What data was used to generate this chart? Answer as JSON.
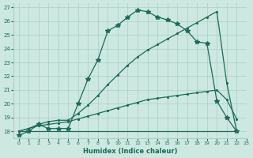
{
  "xlabel": "Humidex (Indice chaleur)",
  "xlim": [
    -0.5,
    23
  ],
  "ylim": [
    17.5,
    27.3
  ],
  "yticks": [
    18,
    19,
    20,
    21,
    22,
    23,
    24,
    25,
    26,
    27
  ],
  "xticks": [
    0,
    1,
    2,
    3,
    4,
    5,
    6,
    7,
    8,
    9,
    10,
    11,
    12,
    13,
    14,
    15,
    16,
    17,
    18,
    19,
    20,
    21,
    22,
    23
  ],
  "bg_color": "#cce8e0",
  "grid_color": "#aacfc7",
  "line_color": "#1a6b5a",
  "curve_main": {
    "x": [
      0,
      1,
      2,
      3,
      4,
      5,
      6,
      7,
      8,
      9,
      10,
      11,
      12,
      13,
      14,
      15,
      16,
      17,
      18,
      19,
      20,
      21,
      22
    ],
    "y": [
      17.7,
      18.0,
      18.5,
      18.2,
      18.2,
      18.2,
      20.0,
      21.8,
      23.2,
      25.3,
      25.7,
      26.3,
      26.8,
      26.7,
      26.3,
      26.1,
      25.8,
      25.3,
      24.5,
      24.4,
      20.2,
      19.0,
      18.0
    ]
  },
  "curve_flat": {
    "x": [
      0,
      22
    ],
    "y": [
      18.0,
      18.0
    ]
  },
  "curve_diag1": {
    "x": [
      0,
      1,
      2,
      3,
      4,
      5,
      6,
      7,
      8,
      9,
      10,
      11,
      12,
      13,
      14,
      15,
      16,
      17,
      18,
      19,
      20,
      21,
      22
    ],
    "y": [
      18.0,
      18.2,
      18.4,
      18.5,
      18.6,
      18.7,
      18.9,
      19.1,
      19.3,
      19.5,
      19.7,
      19.9,
      20.1,
      20.3,
      20.4,
      20.5,
      20.6,
      20.7,
      20.8,
      20.9,
      21.0,
      20.3,
      18.9
    ]
  },
  "curve_diag2": {
    "x": [
      0,
      1,
      2,
      3,
      4,
      5,
      6,
      7,
      8,
      9,
      10,
      11,
      12,
      13,
      14,
      15,
      16,
      17,
      18,
      19,
      20,
      21,
      22
    ],
    "y": [
      18.0,
      18.2,
      18.5,
      18.7,
      18.8,
      18.8,
      19.3,
      19.9,
      20.6,
      21.4,
      22.1,
      22.8,
      23.4,
      23.9,
      24.3,
      24.7,
      25.1,
      25.5,
      25.9,
      26.3,
      26.7,
      21.5,
      18.0
    ]
  }
}
